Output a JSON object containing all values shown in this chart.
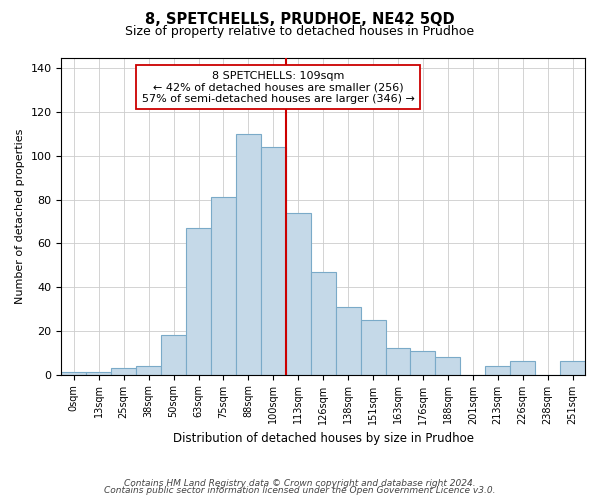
{
  "title": "8, SPETCHELLS, PRUDHOE, NE42 5QD",
  "subtitle": "Size of property relative to detached houses in Prudhoe",
  "xlabel": "Distribution of detached houses by size in Prudhoe",
  "ylabel": "Number of detached properties",
  "bar_labels": [
    "0sqm",
    "13sqm",
    "25sqm",
    "38sqm",
    "50sqm",
    "63sqm",
    "75sqm",
    "88sqm",
    "100sqm",
    "113sqm",
    "126sqm",
    "138sqm",
    "151sqm",
    "163sqm",
    "176sqm",
    "188sqm",
    "201sqm",
    "213sqm",
    "226sqm",
    "238sqm",
    "251sqm"
  ],
  "bar_values": [
    1,
    1,
    3,
    4,
    18,
    67,
    81,
    110,
    104,
    74,
    47,
    31,
    25,
    12,
    11,
    8,
    0,
    4,
    6,
    0,
    6
  ],
  "bar_color": "#c5d9e8",
  "bar_edgecolor": "#7aaac8",
  "vline_color": "#cc0000",
  "annotation_line1": "8 SPETCHELLS: 109sqm",
  "annotation_line2": "← 42% of detached houses are smaller (256)",
  "annotation_line3": "57% of semi-detached houses are larger (346) →",
  "annotation_box_color": "#ffffff",
  "annotation_box_edgecolor": "#cc0000",
  "ylim": [
    0,
    145
  ],
  "yticks": [
    0,
    20,
    40,
    60,
    80,
    100,
    120,
    140
  ],
  "footnote_line1": "Contains HM Land Registry data © Crown copyright and database right 2024.",
  "footnote_line2": "Contains public sector information licensed under the Open Government Licence v3.0.",
  "background_color": "#ffffff",
  "grid_color": "#cccccc"
}
